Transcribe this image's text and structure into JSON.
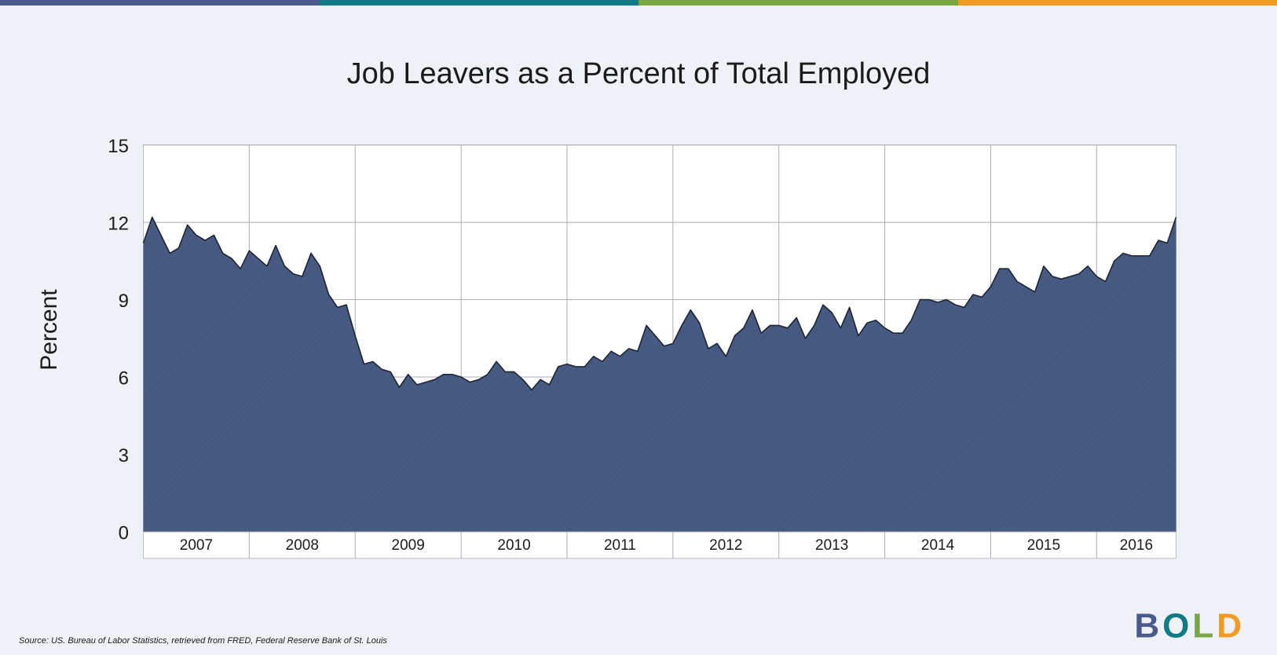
{
  "chart_data": {
    "type": "area",
    "title": "Job Leavers as a Percent of Total Employed",
    "y_label": "Percent",
    "categories": [
      "2007",
      null,
      null,
      null,
      null,
      null,
      null,
      null,
      null,
      null,
      null,
      null,
      "2008",
      null,
      null,
      null,
      null,
      null,
      null,
      null,
      null,
      null,
      null,
      null,
      "2009",
      null,
      null,
      null,
      null,
      null,
      null,
      null,
      null,
      null,
      null,
      null,
      "2010",
      null,
      null,
      null,
      null,
      null,
      null,
      null,
      null,
      null,
      null,
      null,
      "2011",
      null,
      null,
      null,
      null,
      null,
      null,
      null,
      null,
      null,
      null,
      null,
      "2012",
      null,
      null,
      null,
      null,
      null,
      null,
      null,
      null,
      null,
      null,
      null,
      "2013",
      null,
      null,
      null,
      null,
      null,
      null,
      null,
      null,
      null,
      null,
      null,
      "2014",
      null,
      null,
      null,
      null,
      null,
      null,
      null,
      null,
      null,
      null,
      null,
      "2015",
      null,
      null,
      null,
      null,
      null,
      null,
      null,
      null,
      null,
      null,
      null,
      "2016",
      null,
      null,
      null,
      null,
      null,
      null,
      null,
      null,
      null
    ],
    "values": [
      11.2,
      12.2,
      11.5,
      10.8,
      11.0,
      11.9,
      11.5,
      11.3,
      11.5,
      10.8,
      10.6,
      10.2,
      10.9,
      10.6,
      10.3,
      11.1,
      10.3,
      10.0,
      9.9,
      10.8,
      10.3,
      9.2,
      8.7,
      8.8,
      7.6,
      6.5,
      6.6,
      6.3,
      6.2,
      5.6,
      6.1,
      5.7,
      5.8,
      5.9,
      6.1,
      6.1,
      6.0,
      5.8,
      5.9,
      6.1,
      6.6,
      6.2,
      6.2,
      5.9,
      5.5,
      5.9,
      5.7,
      6.4,
      6.5,
      6.4,
      6.4,
      6.8,
      6.6,
      7.0,
      6.8,
      7.1,
      7.0,
      8.0,
      7.6,
      7.2,
      7.3,
      8.0,
      8.6,
      8.1,
      7.1,
      7.3,
      6.8,
      7.6,
      7.9,
      8.6,
      7.7,
      8.0,
      8.0,
      7.9,
      8.3,
      7.5,
      8.0,
      8.8,
      8.5,
      7.9,
      8.7,
      7.6,
      8.1,
      8.2,
      7.9,
      7.7,
      7.7,
      8.2,
      9.0,
      9.0,
      8.9,
      9.0,
      8.8,
      8.7,
      9.2,
      9.1,
      9.5,
      10.2,
      10.2,
      9.7,
      9.5,
      9.3,
      10.3,
      9.9,
      9.8,
      9.9,
      10.0,
      10.3,
      9.9,
      9.7,
      10.5,
      10.8,
      10.7,
      10.7,
      10.7,
      11.3,
      11.2,
      12.2
    ],
    "color": "#475a82",
    "line_color": "#1e2533",
    "ylim": [
      0,
      15
    ],
    "yticks": [
      0,
      3,
      6,
      9,
      12,
      15
    ],
    "grid": true
  },
  "source": "Source: US. Bureau of Labor Statistics, retrieved from FRED, Federal Reserve Bank of St. Louis",
  "logo": "BOLD"
}
